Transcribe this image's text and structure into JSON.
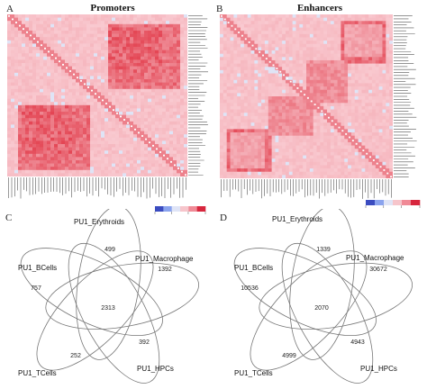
{
  "panels": {
    "a_letter": "A",
    "b_letter": "B",
    "c_letter": "C",
    "d_letter": "D",
    "promoters_title": "Promoters",
    "enhancers_title": "Enhancers"
  },
  "chart_data": [
    {
      "type": "heatmap",
      "title": "Promoters",
      "description_colors": {
        "high": "#e23b4a",
        "mid": "#f6c5cb",
        "low": "#dde4f7",
        "diag": "#ffffff"
      },
      "blocks": [
        {
          "rows": [
            0.06,
            0.45
          ],
          "cols": [
            0.55,
            0.95
          ],
          "level": 0.75
        },
        {
          "rows": [
            0.55,
            0.85
          ],
          "cols": [
            0.08,
            0.35
          ],
          "level": 0.85
        }
      ]
    },
    {
      "type": "heatmap",
      "title": "Enhancers",
      "blocks": [
        {
          "rows": [
            0.7,
            0.95
          ],
          "cols": [
            0.03,
            0.28
          ],
          "level": 0.8
        },
        {
          "rows": [
            0.5,
            0.72
          ],
          "cols": [
            0.28,
            0.52
          ],
          "level": 0.55
        },
        {
          "rows": [
            0.05,
            0.25
          ],
          "cols": [
            0.72,
            0.92
          ],
          "level": 0.4
        }
      ]
    },
    {
      "type": "venn",
      "sets": [
        "PU1_Erythroids",
        "PU1_Macrophage",
        "PU1_HPCs",
        "PU1_TCells",
        "PU1_BCells"
      ],
      "unique_counts": {
        "PU1_Erythroids": 499,
        "PU1_Macrophage": 1392,
        "PU1_HPCs": 392,
        "PU1_TCells": 252,
        "PU1_BCells": 757
      },
      "all_sets_count": 2313
    },
    {
      "type": "venn",
      "sets": [
        "PU1_Erythroids",
        "PU1_Macrophage",
        "PU1_HPCs",
        "PU1_TCells",
        "PU1_BCells"
      ],
      "unique_counts": {
        "PU1_Erythroids": 1339,
        "PU1_Macrophage": 30672,
        "PU1_HPCs": 4943,
        "PU1_TCells": 4999,
        "PU1_BCells": 10536
      },
      "all_sets_count": 2070
    }
  ]
}
